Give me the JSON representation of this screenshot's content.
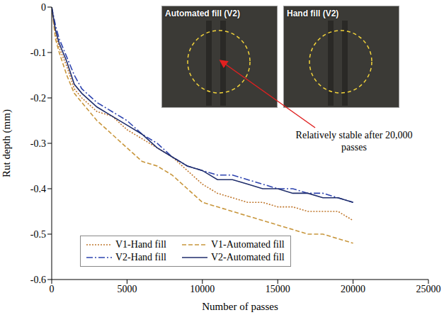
{
  "chart_data": {
    "type": "line",
    "x_label": "Number of passes",
    "y_label": "Rut depth (mm)",
    "x": [
      0,
      250,
      500,
      1000,
      1500,
      2000,
      3000,
      4000,
      5000,
      6000,
      7000,
      8000,
      9000,
      10000,
      11000,
      12000,
      13000,
      14000,
      15000,
      16000,
      17000,
      18000,
      19000,
      20000
    ],
    "series": [
      {
        "name": "V1-Hand fill",
        "color": "#c0782e",
        "line_style": "dotted",
        "values": [
          0,
          -0.06,
          -0.09,
          -0.13,
          -0.18,
          -0.2,
          -0.23,
          -0.24,
          -0.27,
          -0.29,
          -0.31,
          -0.33,
          -0.36,
          -0.39,
          -0.41,
          -0.42,
          -0.43,
          -0.43,
          -0.44,
          -0.44,
          -0.45,
          -0.45,
          -0.45,
          -0.47
        ]
      },
      {
        "name": "V1-Automated fill",
        "color": "#c8963c",
        "line_style": "dashed",
        "values": [
          0,
          -0.07,
          -0.1,
          -0.15,
          -0.19,
          -0.21,
          -0.25,
          -0.28,
          -0.31,
          -0.34,
          -0.35,
          -0.37,
          -0.4,
          -0.43,
          -0.44,
          -0.45,
          -0.46,
          -0.47,
          -0.48,
          -0.49,
          -0.5,
          -0.5,
          -0.51,
          -0.52
        ]
      },
      {
        "name": "V2-Hand fill",
        "color": "#2e44b0",
        "line_style": "dashdot",
        "values": [
          0,
          -0.04,
          -0.07,
          -0.11,
          -0.15,
          -0.18,
          -0.21,
          -0.23,
          -0.25,
          -0.28,
          -0.3,
          -0.33,
          -0.35,
          -0.36,
          -0.37,
          -0.37,
          -0.38,
          -0.39,
          -0.4,
          -0.4,
          -0.41,
          -0.41,
          -0.42,
          -0.43
        ]
      },
      {
        "name": "V2-Automated fill",
        "color": "#1f2d6b",
        "line_style": "solid",
        "values": [
          0,
          -0.05,
          -0.08,
          -0.12,
          -0.17,
          -0.19,
          -0.22,
          -0.24,
          -0.26,
          -0.28,
          -0.31,
          -0.33,
          -0.35,
          -0.36,
          -0.38,
          -0.38,
          -0.39,
          -0.4,
          -0.4,
          -0.41,
          -0.41,
          -0.42,
          -0.42,
          -0.43
        ]
      }
    ],
    "xlim": [
      0,
      25000
    ],
    "xticks": [
      0,
      5000,
      10000,
      15000,
      20000,
      25000
    ],
    "ylim": [
      -0.6,
      0
    ],
    "yticks": [
      -0.6,
      -0.5,
      -0.4,
      -0.3,
      -0.2,
      -0.1,
      0
    ],
    "legend": "lower left",
    "insets": [
      "Automated fill (V2)",
      "Hand fill (V2)"
    ],
    "annotations": [
      "Relatively stable after 20,000 passes"
    ]
  }
}
